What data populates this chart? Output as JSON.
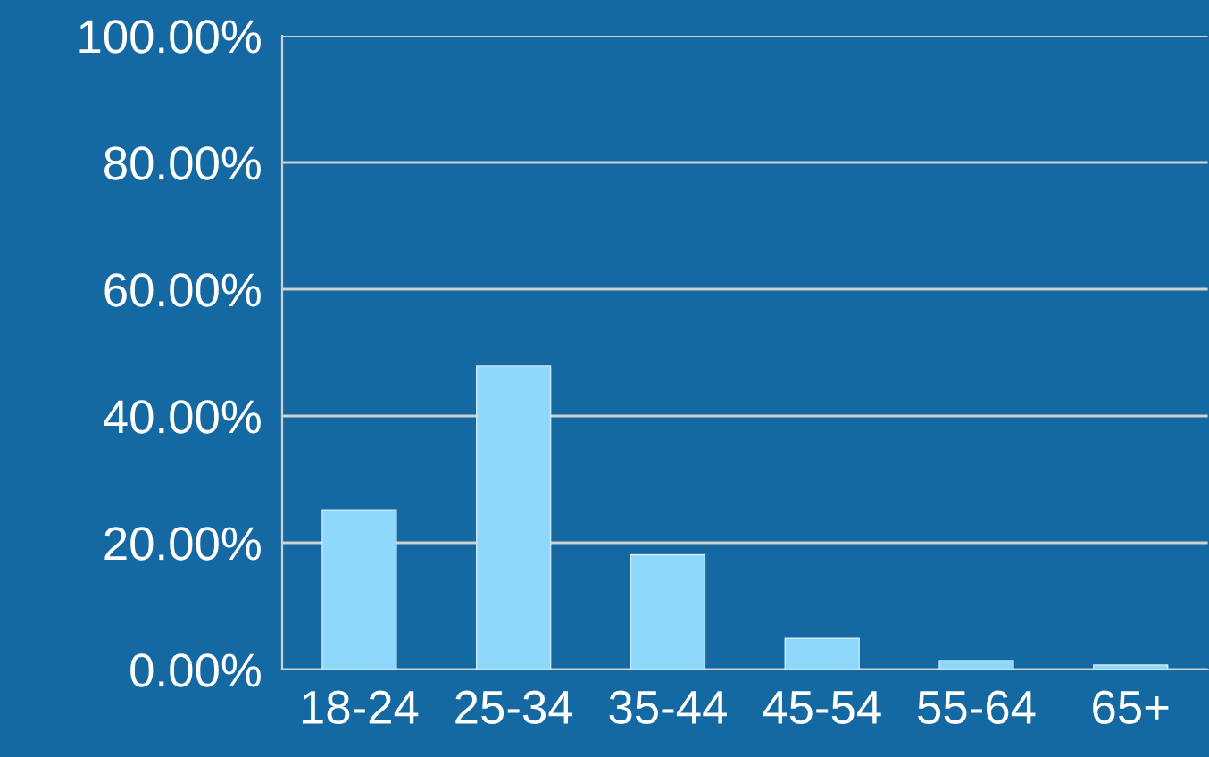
{
  "chart_data": {
    "type": "bar",
    "categories": [
      "18-24",
      "25-34",
      "35-44",
      "45-54",
      "55-64",
      "65+"
    ],
    "values": [
      25.2,
      47.9,
      18.1,
      4.9,
      1.4,
      0.7
    ],
    "color": "#8dd8fb",
    "ylim": [
      0,
      100
    ],
    "yticks": [
      {
        "value": 0,
        "label": "0.00%"
      },
      {
        "value": 20,
        "label": "20.00%"
      },
      {
        "value": 40,
        "label": "40.00%"
      },
      {
        "value": 60,
        "label": "60.00%"
      },
      {
        "value": 80,
        "label": "80.00%"
      },
      {
        "value": 100,
        "label": "100.00%"
      }
    ],
    "grid": "y"
  }
}
